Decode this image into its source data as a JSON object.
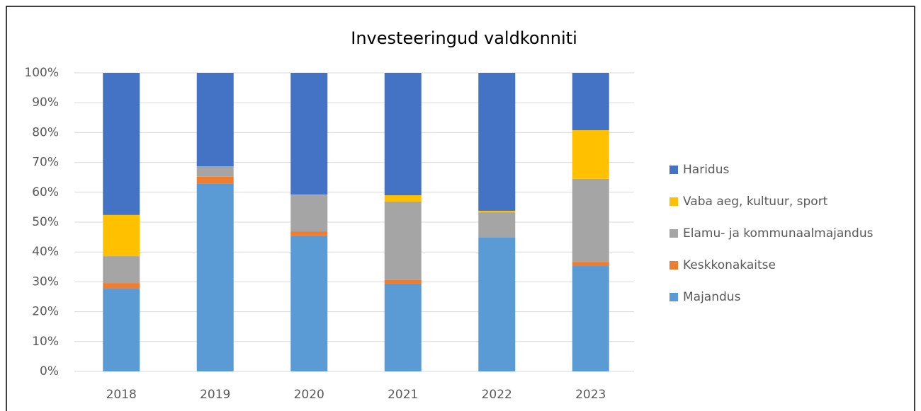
{
  "chart_data": {
    "type": "stacked_bar",
    "title": "Investeeringud valdkonniti",
    "categories": [
      "2018",
      "2019",
      "2020",
      "2021",
      "2022",
      "2023"
    ],
    "series": [
      {
        "name": "Majandus",
        "color": "#5b9bd5",
        "values": [
          27.7,
          63.0,
          45.3,
          29.4,
          44.8,
          35.3
        ]
      },
      {
        "name": "Keskkonakaitse",
        "color": "#ed7d31",
        "values": [
          1.9,
          2.2,
          1.6,
          1.2,
          0.2,
          1.4
        ]
      },
      {
        "name": "Elamu- ja kommunaalmajandus",
        "color": "#a5a5a5",
        "values": [
          9.0,
          3.5,
          12.1,
          26.3,
          8.3,
          27.8
        ]
      },
      {
        "name": "Vaba aeg, kultuur, sport",
        "color": "#ffc000",
        "values": [
          13.8,
          0,
          0.2,
          2.1,
          0.5,
          16.3
        ]
      },
      {
        "name": "Haridus",
        "color": "#4472c4",
        "values": [
          47.6,
          31.3,
          40.8,
          41.0,
          46.2,
          19.2
        ]
      }
    ],
    "ylim": [
      0,
      100
    ],
    "yticks": [
      {
        "value": 0,
        "label": "0%"
      },
      {
        "value": 10,
        "label": "10%"
      },
      {
        "value": 20,
        "label": "20%"
      },
      {
        "value": 30,
        "label": "30%"
      },
      {
        "value": 40,
        "label": "40%"
      },
      {
        "value": 50,
        "label": "50%"
      },
      {
        "value": 60,
        "label": "60%"
      },
      {
        "value": 70,
        "label": "70%"
      },
      {
        "value": 80,
        "label": "80%"
      },
      {
        "value": 90,
        "label": "90%"
      },
      {
        "value": 100,
        "label": "100%"
      }
    ],
    "grid": true,
    "legend": "right"
  }
}
